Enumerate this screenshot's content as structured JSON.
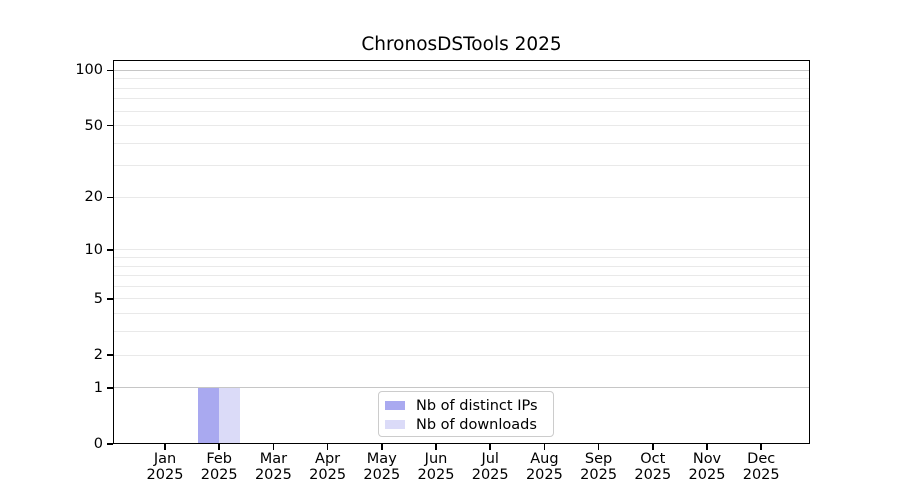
{
  "title": "ChronosDSTools 2025",
  "colors": {
    "distinct_ips": "#a9a9f0",
    "downloads": "#dbdbf8",
    "grid_dark": "#c6c6c6",
    "grid_light": "#e9e9e9",
    "axis": "#000000",
    "legend_border": "#cccccc",
    "background": "#ffffff"
  },
  "chart_data": {
    "type": "bar",
    "title": "ChronosDSTools 2025",
    "x_months": [
      "Jan",
      "Feb",
      "Mar",
      "Apr",
      "May",
      "Jun",
      "Jul",
      "Aug",
      "Sep",
      "Oct",
      "Nov",
      "Dec"
    ],
    "x_year": "2025",
    "series": [
      {
        "name": "Nb of distinct IPs",
        "color_key": "distinct_ips",
        "values": [
          0,
          1,
          0,
          0,
          0,
          0,
          0,
          0,
          0,
          0,
          0,
          0
        ]
      },
      {
        "name": "Nb of downloads",
        "color_key": "downloads",
        "values": [
          0,
          1,
          0,
          0,
          0,
          0,
          0,
          0,
          0,
          0,
          0,
          0
        ]
      }
    ],
    "y_scale": "log1p",
    "ylim": [
      0,
      100
    ],
    "y_major_ticks": [
      0,
      1,
      2,
      5,
      10,
      20,
      50,
      100
    ],
    "y_gridlines_light": [
      2,
      3,
      4,
      5,
      6,
      7,
      8,
      9,
      10,
      20,
      30,
      40,
      50,
      60,
      70,
      80,
      90
    ],
    "y_gridlines_dark": [
      1,
      100
    ],
    "grid": true,
    "legend_position": "lower center"
  }
}
